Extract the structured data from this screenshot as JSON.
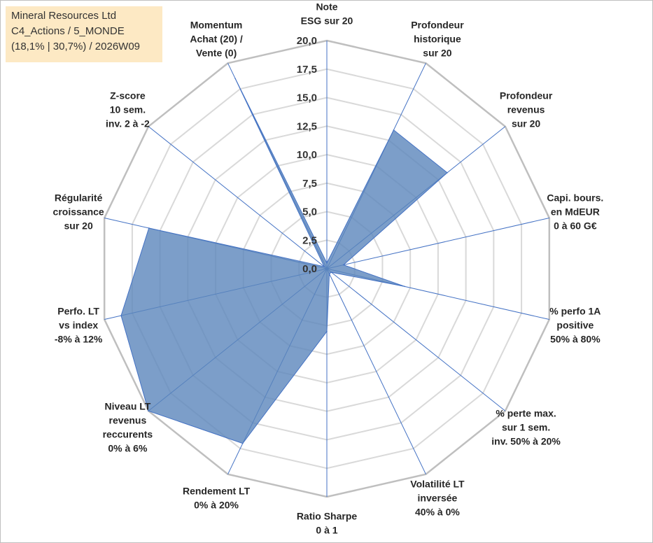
{
  "info": {
    "line1": "Mineral Resources Ltd",
    "line2": "C4_Actions / 5_MONDE",
    "line3": "(18,1% | 30,7%) / 2026W09"
  },
  "colors": {
    "fill": "#5b86bb",
    "spoke": "#4472c4",
    "grid_outer": "#bfbfbf",
    "grid_inner": "#d9d9d9",
    "info_bg": "#fde9c4"
  },
  "chart_data": {
    "type": "radar",
    "rmin": 0,
    "rmax": 20,
    "ticks": [
      "0,0",
      "2,5",
      "5,0",
      "7,5",
      "10,0",
      "12,5",
      "15,0",
      "17,5",
      "20,0"
    ],
    "tick_values": [
      0,
      2.5,
      5,
      7.5,
      10,
      12.5,
      15,
      17.5,
      20
    ],
    "axes": [
      {
        "label": [
          "Note",
          "ESG sur 20"
        ],
        "value": 0.5
      },
      {
        "label": [
          "Profondeur",
          "historique",
          "sur 20"
        ],
        "value": 13.5
      },
      {
        "label": [
          "Profondeur",
          "revenus",
          "sur 20"
        ],
        "value": 13.5
      },
      {
        "label": [
          "Capi. bours.",
          "en MdEUR",
          "0 à 60 G€"
        ],
        "value": 1.5
      },
      {
        "label": [
          "% perfo 1A",
          "positive",
          "50% à 80%"
        ],
        "value": 7.0
      },
      {
        "label": [
          "% perte max.",
          "sur 1 sem.",
          "inv. 50% à 20%"
        ],
        "value": 0.5
      },
      {
        "label": [
          "Volatilité LT",
          "inversée",
          "40% à 0%"
        ],
        "value": 0.5
      },
      {
        "label": [
          "Ratio Sharpe",
          "0 à 1"
        ],
        "value": 5.5
      },
      {
        "label": [
          "Rendement LT",
          "0% à 20%"
        ],
        "value": 17.0
      },
      {
        "label": [
          "Niveau LT",
          "revenus",
          "reccurents",
          "0% à 6%"
        ],
        "value": 20.0
      },
      {
        "label": [
          "Perfo. LT",
          "vs index",
          "-8% à 12%"
        ],
        "value": 18.5
      },
      {
        "label": [
          "Régularité",
          "croissance",
          "sur 20"
        ],
        "value": 16.0
      },
      {
        "label": [
          "Z-score",
          "10 sem.",
          "inv. 2 à -2"
        ],
        "value": 0.3
      },
      {
        "label": [
          "Momentum",
          "Achat (20) /",
          "Vente (0)"
        ],
        "value": 18.5
      }
    ]
  }
}
